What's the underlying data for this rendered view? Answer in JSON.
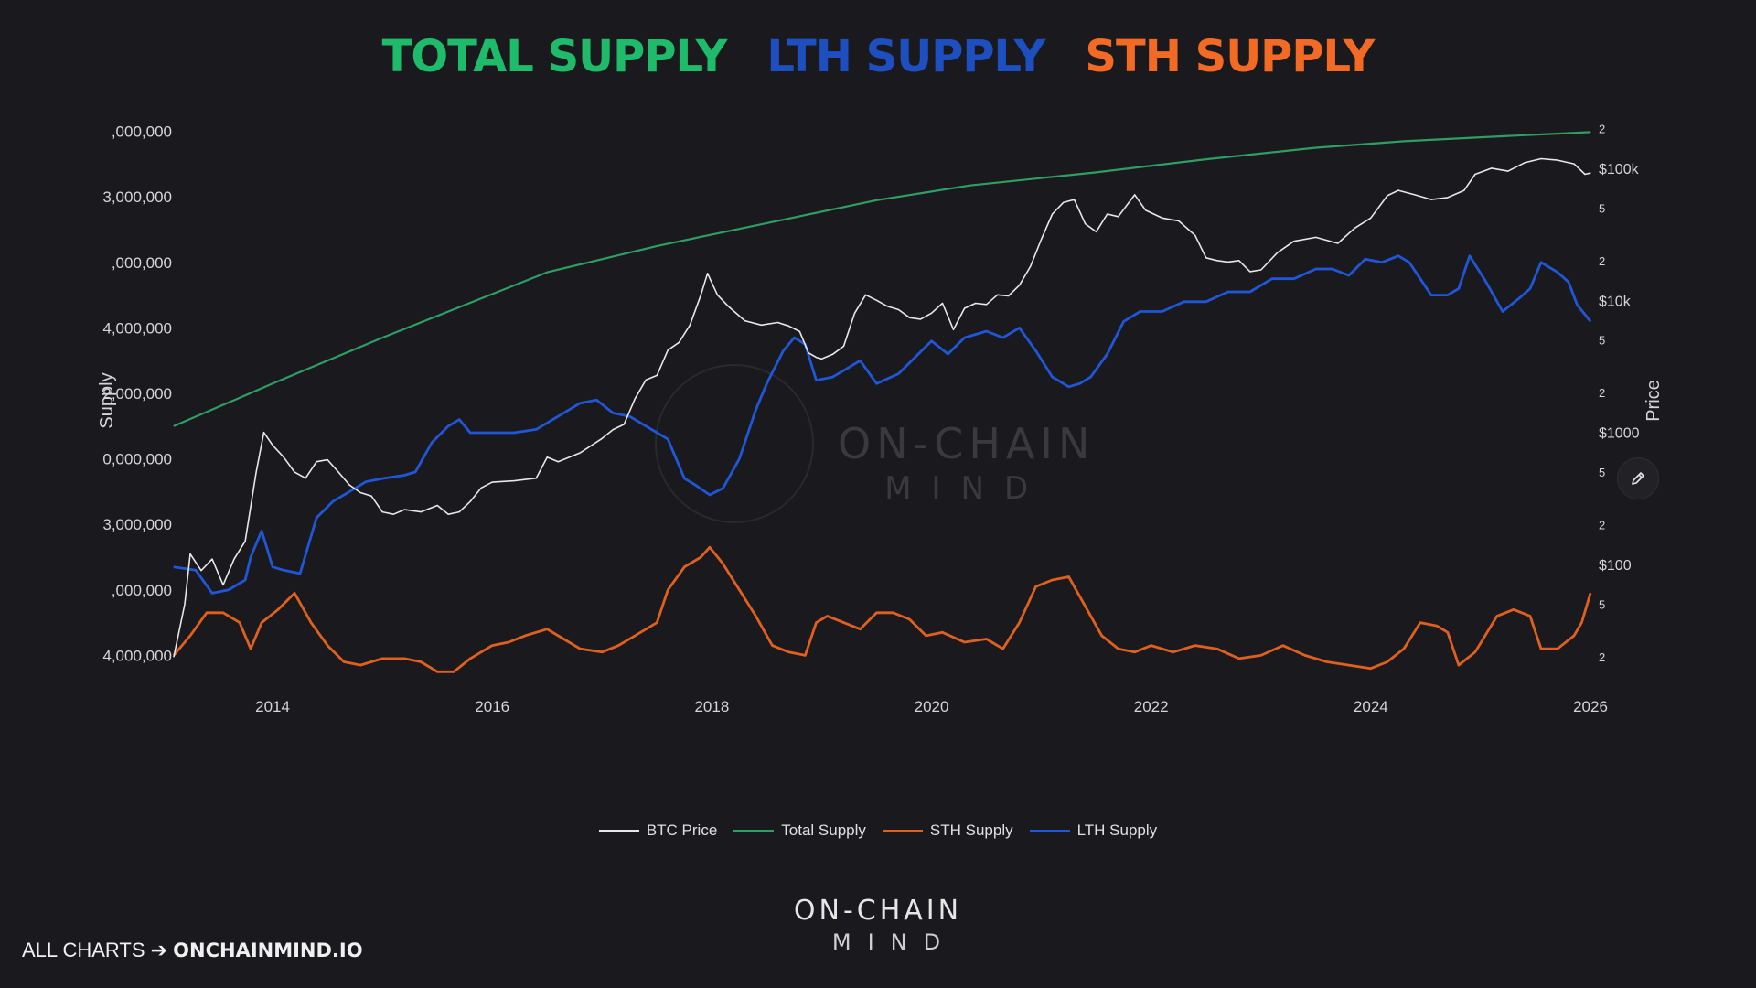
{
  "header": {
    "total": {
      "label": "TOTAL SUPPLY",
      "color": "#1ebc6a"
    },
    "lth": {
      "label": "LTH SUPPLY",
      "color": "#1e4fc1"
    },
    "sth": {
      "label": "STH SUPPLY",
      "color": "#f26a23"
    }
  },
  "watermark": {
    "top": "ON-CHAIN",
    "bottom": "MIND"
  },
  "brand": {
    "top": "ON-CHAIN",
    "bottom": "MIND"
  },
  "footer": {
    "prefix": "ALL CHARTS ➔ ",
    "site": "ONCHAINMIND.IO"
  },
  "edit_icon": "pencil-icon",
  "chart_data": {
    "type": "line",
    "left_axis": {
      "title": "Supply",
      "ticks": [
        ",000,000",
        "3,000,000",
        ",000,000",
        "4,000,000",
        "2,000,000",
        "0,000,000",
        "3,000,000",
        ",000,000",
        "4,000,000"
      ],
      "tick_values": [
        20000000,
        18000000,
        16000000,
        14000000,
        12000000,
        10000000,
        8000000,
        6000000,
        4000000
      ],
      "range": [
        3200000,
        20800000
      ]
    },
    "right_axis": {
      "title": "Price",
      "scale": "log",
      "major_ticks": [
        "$100k",
        "$10k",
        "$1000",
        "$100"
      ],
      "major_values": [
        100000,
        10000,
        1000,
        100
      ],
      "minor_ticks": [
        "2",
        "5",
        "2",
        "5",
        "2",
        "5",
        "2",
        "5",
        "2"
      ],
      "minor_values": [
        200000,
        50000,
        20000,
        5000,
        2000,
        500,
        200,
        50,
        20
      ],
      "range": [
        13,
        300000
      ]
    },
    "x_axis": {
      "ticks": [
        "2014",
        "2016",
        "2018",
        "2020",
        "2022",
        "2024",
        "2026"
      ],
      "tick_values": [
        2014,
        2016,
        2018,
        2020,
        2022,
        2024,
        2026
      ],
      "range": [
        2013.1,
        2026.05
      ]
    },
    "legend": [
      "BTC Price",
      "Total Supply",
      "STH Supply",
      "LTH Supply"
    ],
    "legend_position": "bottom-center",
    "grid": false,
    "series": [
      {
        "name": "BTC Price",
        "color": "#e8e8e8",
        "axis": "right",
        "x": [
          2013.1,
          2013.2,
          2013.25,
          2013.35,
          2013.45,
          2013.55,
          2013.65,
          2013.75,
          2013.85,
          2013.92,
          2014.0,
          2014.1,
          2014.2,
          2014.3,
          2014.4,
          2014.5,
          2014.6,
          2014.7,
          2014.8,
          2014.9,
          2015.0,
          2015.1,
          2015.2,
          2015.35,
          2015.5,
          2015.6,
          2015.7,
          2015.8,
          2015.9,
          2016.0,
          2016.2,
          2016.4,
          2016.5,
          2016.6,
          2016.8,
          2017.0,
          2017.1,
          2017.2,
          2017.3,
          2017.4,
          2017.5,
          2017.6,
          2017.7,
          2017.8,
          2017.9,
          2017.96,
          2018.05,
          2018.15,
          2018.3,
          2018.45,
          2018.6,
          2018.7,
          2018.8,
          2018.88,
          2018.95,
          2019.0,
          2019.1,
          2019.2,
          2019.3,
          2019.4,
          2019.5,
          2019.6,
          2019.7,
          2019.8,
          2019.9,
          2020.0,
          2020.1,
          2020.2,
          2020.3,
          2020.4,
          2020.5,
          2020.6,
          2020.7,
          2020.8,
          2020.9,
          2021.0,
          2021.1,
          2021.2,
          2021.3,
          2021.4,
          2021.5,
          2021.6,
          2021.7,
          2021.85,
          2021.95,
          2022.1,
          2022.25,
          2022.4,
          2022.5,
          2022.6,
          2022.7,
          2022.8,
          2022.9,
          2023.0,
          2023.15,
          2023.3,
          2023.5,
          2023.7,
          2023.85,
          2024.0,
          2024.15,
          2024.25,
          2024.4,
          2024.55,
          2024.7,
          2024.85,
          2024.95,
          2025.1,
          2025.25,
          2025.4,
          2025.55,
          2025.7,
          2025.85,
          2025.95,
          2026.0
        ],
        "y": [
          20,
          50,
          120,
          90,
          110,
          70,
          110,
          150,
          500,
          1000,
          800,
          650,
          500,
          450,
          600,
          620,
          500,
          400,
          350,
          330,
          250,
          240,
          260,
          250,
          280,
          240,
          250,
          300,
          380,
          420,
          430,
          450,
          650,
          600,
          700,
          900,
          1050,
          1150,
          1800,
          2500,
          2700,
          4200,
          4800,
          6500,
          11000,
          16000,
          11000,
          9000,
          7000,
          6500,
          6800,
          6400,
          5800,
          4000,
          3700,
          3600,
          3900,
          4500,
          8000,
          11000,
          10000,
          9000,
          8500,
          7400,
          7200,
          8000,
          9500,
          6000,
          8700,
          9500,
          9300,
          11000,
          10800,
          13000,
          18000,
          29000,
          45000,
          55000,
          58000,
          38000,
          33000,
          45000,
          43000,
          63000,
          48000,
          42000,
          40000,
          31000,
          21000,
          20000,
          19500,
          20000,
          16500,
          17000,
          23000,
          28000,
          30000,
          27000,
          35000,
          42000,
          62000,
          68000,
          63000,
          58000,
          60000,
          68000,
          90000,
          100000,
          95000,
          110000,
          118000,
          115000,
          108000,
          90000,
          92000
        ]
      },
      {
        "name": "Total Supply",
        "color": "#2e9e63",
        "axis": "left",
        "x": [
          2013.1,
          2014.0,
          2015.0,
          2016.5,
          2017.5,
          2018.5,
          2019.5,
          2020.35,
          2021.5,
          2022.5,
          2023.5,
          2024.3,
          2025.0,
          2026.0
        ],
        "y": [
          11000000,
          12300000,
          13700000,
          15700000,
          16500000,
          17200000,
          17900000,
          18350000,
          18750000,
          19150000,
          19500000,
          19700000,
          19820000,
          19980000
        ]
      },
      {
        "name": "STH Supply",
        "color": "#e0601f",
        "axis": "left",
        "x": [
          2013.1,
          2013.25,
          2013.4,
          2013.55,
          2013.7,
          2013.8,
          2013.9,
          2014.05,
          2014.2,
          2014.35,
          2014.5,
          2014.65,
          2014.8,
          2015.0,
          2015.2,
          2015.35,
          2015.5,
          2015.65,
          2015.8,
          2016.0,
          2016.15,
          2016.3,
          2016.5,
          2016.65,
          2016.8,
          2017.0,
          2017.15,
          2017.3,
          2017.5,
          2017.6,
          2017.75,
          2017.9,
          2017.98,
          2018.1,
          2018.25,
          2018.4,
          2018.55,
          2018.7,
          2018.85,
          2018.95,
          2019.05,
          2019.2,
          2019.35,
          2019.5,
          2019.65,
          2019.8,
          2019.95,
          2020.1,
          2020.3,
          2020.5,
          2020.65,
          2020.8,
          2020.95,
          2021.1,
          2021.25,
          2021.4,
          2021.55,
          2021.7,
          2021.85,
          2022.0,
          2022.2,
          2022.4,
          2022.6,
          2022.8,
          2023.0,
          2023.2,
          2023.4,
          2023.6,
          2023.8,
          2024.0,
          2024.15,
          2024.3,
          2024.45,
          2024.6,
          2024.7,
          2024.8,
          2024.95,
          2025.15,
          2025.3,
          2025.45,
          2025.55,
          2025.7,
          2025.85,
          2025.92,
          2026.0
        ],
        "y": [
          4000000,
          4600000,
          5300000,
          5300000,
          5000000,
          4200000,
          5000000,
          5400000,
          5900000,
          5000000,
          4300000,
          3800000,
          3700000,
          3900000,
          3900000,
          3800000,
          3500000,
          3500000,
          3900000,
          4300000,
          4400000,
          4600000,
          4800000,
          4500000,
          4200000,
          4100000,
          4300000,
          4600000,
          5000000,
          6000000,
          6700000,
          7000000,
          7300000,
          6800000,
          6000000,
          5200000,
          4300000,
          4100000,
          4000000,
          5000000,
          5200000,
          5000000,
          4800000,
          5300000,
          5300000,
          5100000,
          4600000,
          4700000,
          4400000,
          4500000,
          4200000,
          5000000,
          6100000,
          6300000,
          6400000,
          5500000,
          4600000,
          4200000,
          4100000,
          4300000,
          4100000,
          4300000,
          4200000,
          3900000,
          4000000,
          4300000,
          4000000,
          3800000,
          3700000,
          3600000,
          3800000,
          4200000,
          5000000,
          4900000,
          4700000,
          3700000,
          4100000,
          5200000,
          5400000,
          5200000,
          4200000,
          4200000,
          4600000,
          5000000,
          5900000
        ]
      },
      {
        "name": "LTH Supply",
        "color": "#1f57d8",
        "axis": "left",
        "x": [
          2013.1,
          2013.3,
          2013.45,
          2013.6,
          2013.75,
          2013.8,
          2013.9,
          2014.0,
          2014.1,
          2014.25,
          2014.4,
          2014.55,
          2014.7,
          2014.85,
          2015.0,
          2015.2,
          2015.3,
          2015.45,
          2015.6,
          2015.7,
          2015.8,
          2016.0,
          2016.2,
          2016.4,
          2016.6,
          2016.8,
          2016.95,
          2017.1,
          2017.25,
          2017.4,
          2017.55,
          2017.6,
          2017.75,
          2017.85,
          2017.98,
          2018.1,
          2018.25,
          2018.4,
          2018.5,
          2018.65,
          2018.75,
          2018.85,
          2018.95,
          2019.1,
          2019.25,
          2019.35,
          2019.5,
          2019.7,
          2019.85,
          2020.0,
          2020.15,
          2020.3,
          2020.5,
          2020.65,
          2020.8,
          2020.95,
          2021.1,
          2021.25,
          2021.35,
          2021.45,
          2021.6,
          2021.75,
          2021.9,
          2022.1,
          2022.3,
          2022.5,
          2022.7,
          2022.9,
          2023.1,
          2023.3,
          2023.5,
          2023.65,
          2023.8,
          2023.95,
          2024.1,
          2024.25,
          2024.35,
          2024.55,
          2024.7,
          2024.8,
          2024.9,
          2025.05,
          2025.2,
          2025.35,
          2025.45,
          2025.55,
          2025.7,
          2025.8,
          2025.88,
          2026.0
        ],
        "y": [
          6700000,
          6600000,
          5900000,
          6000000,
          6300000,
          7000000,
          7800000,
          6700000,
          6600000,
          6500000,
          8200000,
          8700000,
          9000000,
          9300000,
          9400000,
          9500000,
          9600000,
          10500000,
          11000000,
          11200000,
          10800000,
          10800000,
          10800000,
          10900000,
          11300000,
          11700000,
          11800000,
          11400000,
          11300000,
          11000000,
          10700000,
          10600000,
          9400000,
          9200000,
          8900000,
          9100000,
          10000000,
          11500000,
          12300000,
          13300000,
          13700000,
          13500000,
          12400000,
          12500000,
          12800000,
          13000000,
          12300000,
          12600000,
          13100000,
          13600000,
          13200000,
          13700000,
          13900000,
          13700000,
          14000000,
          13300000,
          12500000,
          12200000,
          12300000,
          12500000,
          13200000,
          14200000,
          14500000,
          14500000,
          14800000,
          14800000,
          15100000,
          15100000,
          15500000,
          15500000,
          15800000,
          15800000,
          15600000,
          16100000,
          16000000,
          16200000,
          16000000,
          15000000,
          15000000,
          15200000,
          16200000,
          15400000,
          14500000,
          14900000,
          15200000,
          16000000,
          15700000,
          15400000,
          14700000,
          14200000
        ]
      }
    ]
  }
}
